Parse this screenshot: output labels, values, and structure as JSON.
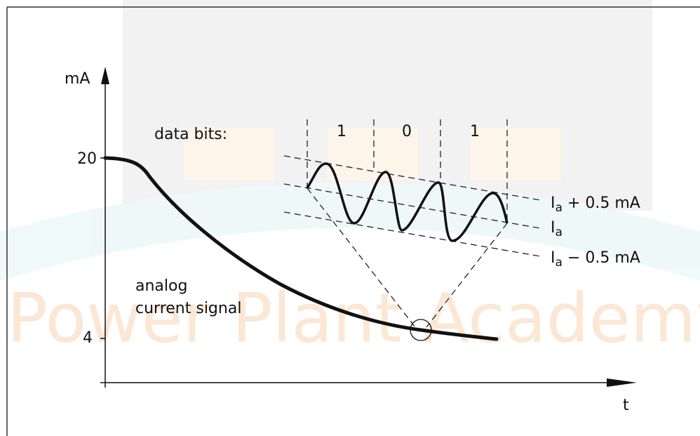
{
  "watermark": "Power Plant Academy",
  "axis": {
    "y_unit": "mA",
    "y_top": "20",
    "y_bottom": "4",
    "x_label": "t"
  },
  "data_bits": {
    "label": "data bits:",
    "bits": [
      "1",
      "0",
      "1"
    ]
  },
  "levels": [
    {
      "symbol": "I",
      "subscript": "a",
      "suffix": " + 0.5 mA"
    },
    {
      "symbol": "I",
      "subscript": "a",
      "suffix": ""
    },
    {
      "symbol": "I",
      "subscript": "a",
      "suffix": " − 0.5 mA"
    }
  ],
  "signal_label": [
    "analog",
    "current signal"
  ]
}
